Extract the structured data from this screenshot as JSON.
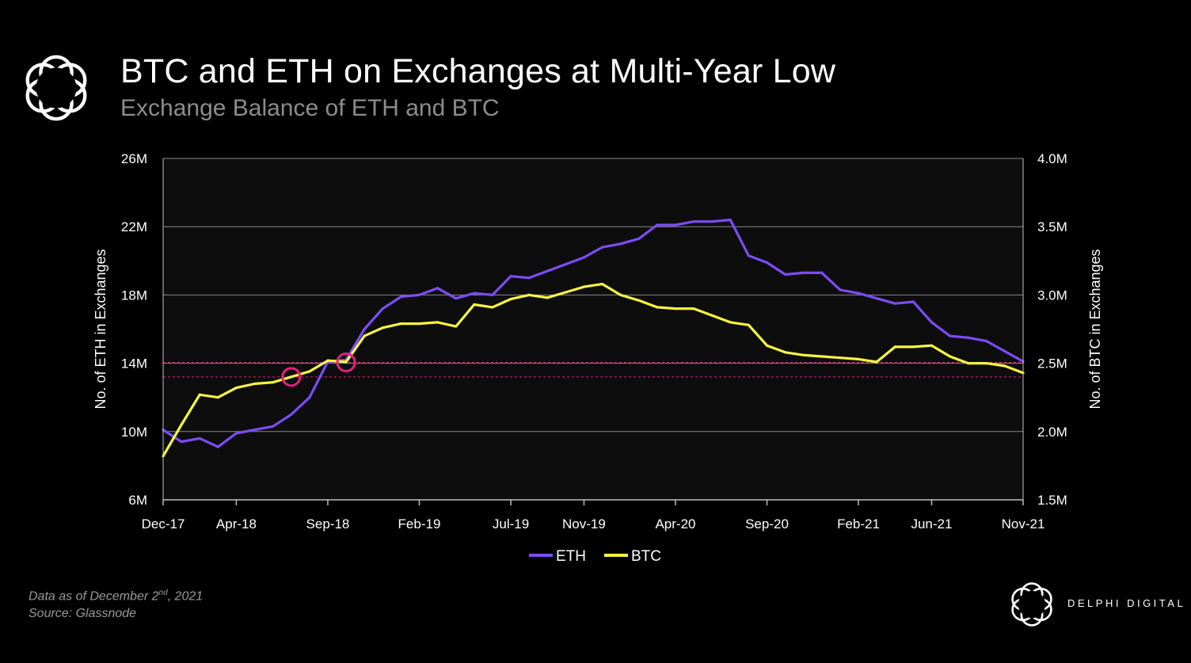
{
  "header": {
    "title": "BTC and ETH on Exchanges at Multi-Year Low",
    "subtitle": "Exchange Balance of ETH and BTC"
  },
  "footer": {
    "data_as_of_prefix": "Data as of December 2",
    "data_as_of_sup": "nd",
    "data_as_of_suffix": ", 2021",
    "source": "Source: Glassnode",
    "brand": "DELPHI DIGITAL"
  },
  "icons": {
    "logo": "delphi-flower-logo-icon"
  },
  "colors": {
    "background": "#000000",
    "plot_background": "#0d0d0d",
    "eth": "#7b4cf5",
    "btc": "#f5f542",
    "marker": "#e3207f",
    "grid": "#8a8a8a"
  },
  "chart_data": {
    "type": "line",
    "title": "BTC and ETH on Exchanges at Multi-Year Low",
    "subtitle": "Exchange Balance of ETH and BTC",
    "x_tick_labels": [
      "Dec-17",
      "Apr-18",
      "Sep-18",
      "Feb-19",
      "Jul-19",
      "Nov-19",
      "Apr-20",
      "Sep-20",
      "Feb-21",
      "Jun-21",
      "Nov-21"
    ],
    "y_left": {
      "label": "No. of ETH in Exchanges",
      "min": 6,
      "max": 26,
      "ticks": [
        "6M",
        "10M",
        "14M",
        "18M",
        "22M",
        "26M"
      ],
      "tick_values": [
        6,
        10,
        14,
        18,
        22,
        26
      ]
    },
    "y_right": {
      "label": "No. of BTC in Exchanges",
      "min": 1.5,
      "max": 4.0,
      "ticks": [
        "1.5M",
        "2.0M",
        "2.5M",
        "3.0M",
        "3.5M",
        "4.0M"
      ],
      "tick_values": [
        1.5,
        2.0,
        2.5,
        3.0,
        3.5,
        4.0
      ]
    },
    "grid": true,
    "legend_position": "bottom-center",
    "series": [
      {
        "name": "ETH",
        "axis": "left",
        "unit": "M",
        "x": [
          "Dec-17",
          "Jan-18",
          "Feb-18",
          "Mar-18",
          "Apr-18",
          "May-18",
          "Jun-18",
          "Jul-18",
          "Aug-18",
          "Sep-18",
          "Oct-18",
          "Nov-18",
          "Dec-18",
          "Jan-19",
          "Feb-19",
          "Mar-19",
          "Apr-19",
          "May-19",
          "Jun-19",
          "Jul-19",
          "Aug-19",
          "Sep-19",
          "Oct-19",
          "Nov-19",
          "Dec-19",
          "Jan-20",
          "Feb-20",
          "Mar-20",
          "Apr-20",
          "May-20",
          "Jun-20",
          "Jul-20",
          "Aug-20",
          "Sep-20",
          "Oct-20",
          "Nov-20",
          "Dec-20",
          "Jan-21",
          "Feb-21",
          "Mar-21",
          "Apr-21",
          "May-21",
          "Jun-21",
          "Jul-21",
          "Aug-21",
          "Sep-21",
          "Oct-21",
          "Nov-21"
        ],
        "values": [
          10.1,
          9.4,
          9.6,
          9.1,
          9.9,
          10.1,
          10.3,
          11.0,
          12.0,
          14.1,
          14.2,
          16.0,
          17.2,
          17.9,
          18.0,
          18.4,
          17.8,
          18.1,
          18.0,
          19.1,
          19.0,
          19.4,
          19.8,
          20.2,
          20.8,
          21.0,
          21.3,
          22.1,
          22.1,
          22.3,
          22.3,
          22.4,
          20.3,
          19.9,
          19.2,
          19.3,
          19.3,
          18.3,
          18.1,
          17.8,
          17.5,
          17.6,
          16.4,
          15.6,
          15.5,
          15.3,
          14.7,
          14.1
        ]
      },
      {
        "name": "BTC",
        "axis": "right",
        "unit": "M",
        "x": [
          "Dec-17",
          "Jan-18",
          "Feb-18",
          "Mar-18",
          "Apr-18",
          "May-18",
          "Jun-18",
          "Jul-18",
          "Aug-18",
          "Sep-18",
          "Oct-18",
          "Nov-18",
          "Dec-18",
          "Jan-19",
          "Feb-19",
          "Mar-19",
          "Apr-19",
          "May-19",
          "Jun-19",
          "Jul-19",
          "Aug-19",
          "Sep-19",
          "Oct-19",
          "Nov-19",
          "Dec-19",
          "Jan-20",
          "Feb-20",
          "Mar-20",
          "Apr-20",
          "May-20",
          "Jun-20",
          "Jul-20",
          "Aug-20",
          "Sep-20",
          "Oct-20",
          "Nov-20",
          "Dec-20",
          "Jan-21",
          "Feb-21",
          "Mar-21",
          "Apr-21",
          "May-21",
          "Jun-21",
          "Jul-21",
          "Aug-21",
          "Sep-21",
          "Oct-21",
          "Nov-21"
        ],
        "values": [
          1.82,
          2.05,
          2.27,
          2.25,
          2.32,
          2.35,
          2.36,
          2.4,
          2.44,
          2.52,
          2.51,
          2.7,
          2.76,
          2.79,
          2.79,
          2.8,
          2.77,
          2.93,
          2.91,
          2.97,
          3.0,
          2.98,
          3.02,
          3.06,
          3.08,
          3.0,
          2.96,
          2.91,
          2.9,
          2.9,
          2.85,
          2.8,
          2.78,
          2.63,
          2.58,
          2.56,
          2.55,
          2.54,
          2.53,
          2.51,
          2.62,
          2.62,
          2.63,
          2.55,
          2.5,
          2.5,
          2.48,
          2.43
        ]
      }
    ],
    "annotations": [
      {
        "type": "circle",
        "x": "Jul-18",
        "value": 13.2,
        "axis": "left"
      },
      {
        "type": "circle",
        "x": "Oct-18",
        "value": 14.05,
        "axis": "left"
      },
      {
        "type": "hline",
        "value": 14.05,
        "axis": "left",
        "style": "dashed"
      },
      {
        "type": "hline",
        "value": 13.2,
        "axis": "left",
        "style": "dashed"
      }
    ]
  }
}
